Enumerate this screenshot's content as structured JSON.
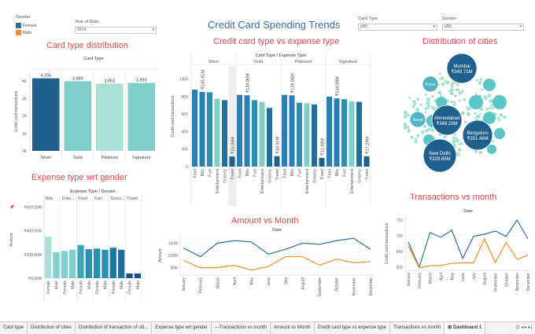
{
  "filters": {
    "gender_legend": {
      "title": "Gender",
      "items": [
        {
          "label": "Female",
          "color": "#2c6e9c"
        },
        {
          "label": "Male",
          "color": "#f28e2b"
        }
      ]
    },
    "year": {
      "label": "Year of Date",
      "value": "2014"
    },
    "card_type": {
      "label": "Card Type",
      "value": "(All)"
    },
    "gender": {
      "label": "Gender",
      "value": "(All)"
    }
  },
  "dashboard_title": "Credit Card Spending Trends",
  "titles": {
    "card_type": "Card type distribution",
    "cvse": "Credit card type vs expense type",
    "cities": "Distribution of cities",
    "gender": "Expense type wrt gender",
    "amount": "Amount vs Month",
    "tx": "Transactions vs month"
  },
  "chart_data": [
    {
      "id": "card_type",
      "type": "bar",
      "header": "Card Type",
      "categories": [
        "Silver",
        "Gold",
        "Platinum",
        "Signature"
      ],
      "values": [
        4156,
        3989,
        3853,
        3893
      ],
      "value_labels": [
        "4,156",
        "3,989",
        "3,853",
        "3,893"
      ],
      "colors": [
        "#1f5f8b",
        "#7fcfcb",
        "#a8e0d5",
        "#7fcfcb"
      ],
      "ylabel": "Credit card transactions",
      "ylim": [
        0,
        4500
      ],
      "yticks": [
        0,
        1000,
        2000,
        3000,
        4000
      ],
      "ytick_labels": [
        "0K",
        "1K",
        "2K",
        "3K",
        "4K"
      ]
    },
    {
      "id": "cvse",
      "type": "bar",
      "header": "Card Type / Expense Type",
      "groups": [
        "Silver",
        "Gold",
        "Platinum",
        "Signature"
      ],
      "categories": [
        "Food",
        "Bills",
        "Fuel",
        "Entertainment",
        "Grocery",
        "Travel"
      ],
      "colors": [
        "#2980b9",
        "#2980b9",
        "#2c8fb0",
        "#7fcfcb",
        "#236e9c",
        "#1f5f8b"
      ],
      "values": [
        [
          880,
          855,
          850,
          775,
          760,
          115
        ],
        [
          820,
          815,
          760,
          740,
          670,
          120
        ],
        [
          820,
          815,
          730,
          725,
          710,
          100
        ],
        [
          800,
          780,
          770,
          745,
          740,
          118
        ]
      ],
      "annotations": [
        {
          "group": 0,
          "cat": 1,
          "text": "₹145.81M"
        },
        {
          "group": 0,
          "cat": 5,
          "text": "₹15.84M"
        },
        {
          "group": 1,
          "cat": 1,
          "text": "₹134.00M"
        },
        {
          "group": 1,
          "cat": 5,
          "text": "₹19.92M"
        },
        {
          "group": 2,
          "cat": 1,
          "text": "₹129.05M"
        },
        {
          "group": 2,
          "cat": 5,
          "text": "₹12.48M"
        },
        {
          "group": 3,
          "cat": 1,
          "text": "₹134.88M"
        },
        {
          "group": 3,
          "cat": 5,
          "text": "₹17.29M"
        }
      ],
      "ylabel": "Credit card transactions",
      "ylim": [
        0,
        1150
      ],
      "yticks": [
        0,
        200,
        400,
        600,
        800,
        1000
      ],
      "ytick_labels": [
        "0",
        "200",
        "400",
        "600",
        "800",
        "1000"
      ]
    },
    {
      "id": "cities",
      "type": "bubble",
      "labeled": [
        {
          "name": "Mumbai",
          "value": "₹349.71M",
          "color": "#1f5f8b"
        },
        {
          "name": "Ahmedabad",
          "value": "₹348.29M",
          "color": "#1f5f8b"
        },
        {
          "name": "Bengaluru",
          "value": "₹351.48M",
          "color": "#1f5f8b"
        },
        {
          "name": "New Delhi",
          "value": "₹329.85M",
          "color": "#1f5f8b"
        },
        {
          "name": "Pune",
          "value": "",
          "color": "#4fb3c2"
        },
        {
          "name": "Surat",
          "value": "",
          "color": "#4fb3c2"
        }
      ]
    },
    {
      "id": "gender",
      "type": "bar",
      "header": "Expense Type / Gender",
      "groups": [
        "Bills",
        "Enter...",
        "Food",
        "Fuel",
        "Groce...",
        "Travel"
      ],
      "categories": [
        "Female",
        "Male"
      ],
      "values": [
        [
          350,
          220
        ],
        [
          230,
          240
        ],
        [
          280,
          245
        ],
        [
          250,
          240
        ],
        [
          258,
          240
        ],
        [
          40,
          40
        ]
      ],
      "colors": [
        [
          "#a8e0d5",
          "#7fcfcb"
        ],
        [
          "#7fcfcb",
          "#7fcfcb"
        ],
        [
          "#3aa6b9",
          "#2a8fb0"
        ],
        [
          "#2a8fb0",
          "#2a8fb0"
        ],
        [
          "#1f7aa3",
          "#236e9c"
        ],
        [
          "#1f4f8b",
          "#1f4f8b"
        ]
      ],
      "ylabel": "Amount",
      "ylim": [
        0,
        650
      ],
      "yticks": [
        0,
        200,
        400,
        600
      ],
      "ytick_labels": [
        "₹0.00M",
        "₹200.00M",
        "₹400.00M",
        "₹600.00M"
      ]
    },
    {
      "id": "amount",
      "type": "line",
      "header": "Date",
      "x": [
        "January",
        "February",
        "March",
        "April",
        "May",
        "June",
        "July",
        "August",
        "September",
        "October",
        "November",
        "December"
      ],
      "series": [
        {
          "name": "Female",
          "color": "#2c6e9c",
          "values": [
            106,
            99,
            110,
            112,
            111,
            101,
            105,
            110,
            109,
            112,
            114,
            105
          ]
        },
        {
          "name": "Male",
          "color": "#f28e2b",
          "values": [
            96,
            90,
            90,
            92,
            88,
            91,
            99,
            99,
            92,
            97,
            94,
            95
          ]
        }
      ],
      "ylabel": "Amount",
      "ylim": [
        84,
        116
      ],
      "yticks": [
        90,
        100,
        110
      ],
      "ytick_labels": [
        "90M",
        "100M",
        "110M"
      ]
    },
    {
      "id": "tx",
      "type": "line",
      "header": "Date",
      "x": [
        "January",
        "February",
        "March",
        "April",
        "May",
        "June",
        "July",
        "August",
        "September",
        "October",
        "November",
        "December"
      ],
      "series": [
        {
          "name": "Female",
          "color": "#2c6e9c",
          "values": [
            680,
            600,
            710,
            695,
            718,
            628,
            698,
            705,
            715,
            698,
            750,
            690
          ]
        },
        {
          "name": "Male",
          "color": "#f28e2b",
          "values": [
            668,
            598,
            605,
            606,
            612,
            614,
            614,
            690,
            615,
            679,
            625,
            638
          ]
        }
      ],
      "ylabel": "Credit card transactions",
      "ylim": [
        590,
        760
      ],
      "yticks": [
        600,
        650,
        700,
        750
      ],
      "ytick_labels": [
        "600",
        "650",
        "700",
        "750"
      ]
    }
  ],
  "tabs": [
    "Card type",
    "Distribution of cities",
    "Distribution of transaction of citi...",
    "Expense type wrt gender",
    "---Transactions vs month",
    "Amount vs Month",
    "Credit card type vs expense type",
    "Transactions vs month",
    "Dashboard 1"
  ]
}
